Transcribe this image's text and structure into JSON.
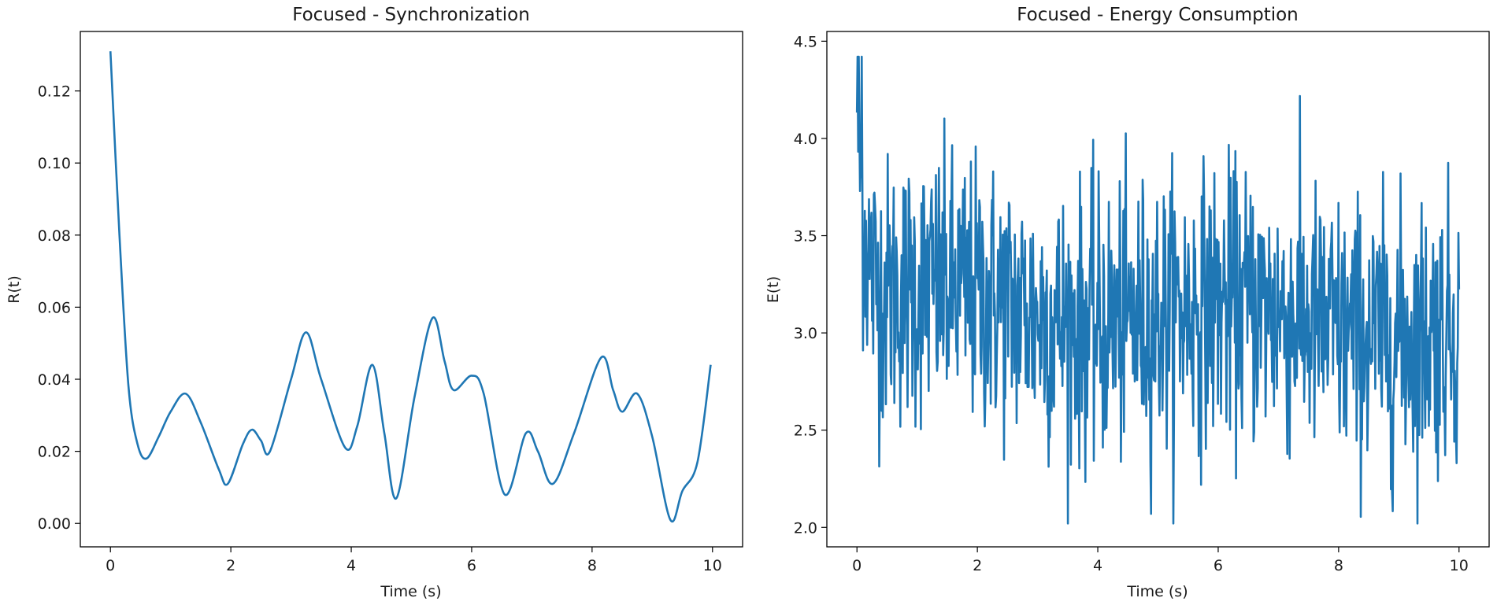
{
  "figure": {
    "line_color": "#1f77b4",
    "axes_color": "#000000"
  },
  "chart_data": [
    {
      "type": "line",
      "title": "Focused - Synchronization",
      "xlabel": "Time (s)",
      "ylabel": "R(t)",
      "xlim": [
        -0.5,
        10.5
      ],
      "ylim": [
        -0.0065,
        0.1365
      ],
      "xticks": [
        0,
        2,
        4,
        6,
        8,
        10
      ],
      "xtick_labels": [
        "0",
        "2",
        "4",
        "6",
        "8",
        "10"
      ],
      "yticks": [
        0.0,
        0.02,
        0.04,
        0.06,
        0.08,
        0.1,
        0.12
      ],
      "ytick_labels": [
        "0.00",
        "0.02",
        "0.04",
        "0.06",
        "0.08",
        "0.10",
        "0.12"
      ],
      "grid": false,
      "legend": null,
      "series": [
        {
          "name": "R(t)",
          "x": [
            0,
            0.15,
            0.3,
            0.45,
            0.6,
            0.8,
            1.0,
            1.25,
            1.5,
            1.8,
            1.95,
            2.2,
            2.35,
            2.5,
            2.65,
            3.0,
            3.25,
            3.5,
            3.9,
            4.1,
            4.35,
            4.55,
            4.75,
            5.05,
            5.35,
            5.55,
            5.7,
            6.0,
            6.2,
            6.55,
            6.9,
            7.1,
            7.35,
            7.7,
            8.15,
            8.35,
            8.5,
            8.75,
            9.0,
            9.3,
            9.5,
            9.75,
            9.97
          ],
          "y": [
            0.131,
            0.08,
            0.038,
            0.022,
            0.018,
            0.024,
            0.031,
            0.036,
            0.028,
            0.015,
            0.011,
            0.022,
            0.026,
            0.023,
            0.02,
            0.04,
            0.053,
            0.04,
            0.021,
            0.027,
            0.044,
            0.025,
            0.007,
            0.035,
            0.057,
            0.045,
            0.037,
            0.041,
            0.036,
            0.008,
            0.025,
            0.02,
            0.011,
            0.025,
            0.046,
            0.037,
            0.031,
            0.036,
            0.024,
            0.001,
            0.009,
            0.017,
            0.044
          ]
        }
      ]
    },
    {
      "type": "line",
      "title": "Focused - Energy Consumption",
      "xlabel": "Time (s)",
      "ylabel": "E(t)",
      "xlim": [
        -0.5,
        10.5
      ],
      "ylim": [
        1.9,
        4.55
      ],
      "xticks": [
        0,
        2,
        4,
        6,
        8,
        10
      ],
      "xtick_labels": [
        "0",
        "2",
        "4",
        "6",
        "8",
        "10"
      ],
      "yticks": [
        2.0,
        2.5,
        3.0,
        3.5,
        4.0,
        4.5
      ],
      "ytick_labels": [
        "2.0",
        "2.5",
        "3.0",
        "3.5",
        "4.0",
        "4.5"
      ],
      "grid": false,
      "legend": null,
      "series": [
        {
          "name": "E(t)",
          "description": "Dense noisy signal (~1000 samples, 0–10 s) fluctuating around ~3.1 with std ~0.35; initial spike to ~4.42 near t=0; min ~2.02 near t=9.3 and ~2.04 near t=3.85; local maxima ~4.12 near t=3.25 and t=5.45",
          "t_start": 0,
          "t_end": 10,
          "n_points": 1000,
          "mean": 3.1,
          "std": 0.35,
          "y_max": 4.42,
          "y_min": 2.02,
          "initial_value": 4.2
        }
      ]
    }
  ]
}
